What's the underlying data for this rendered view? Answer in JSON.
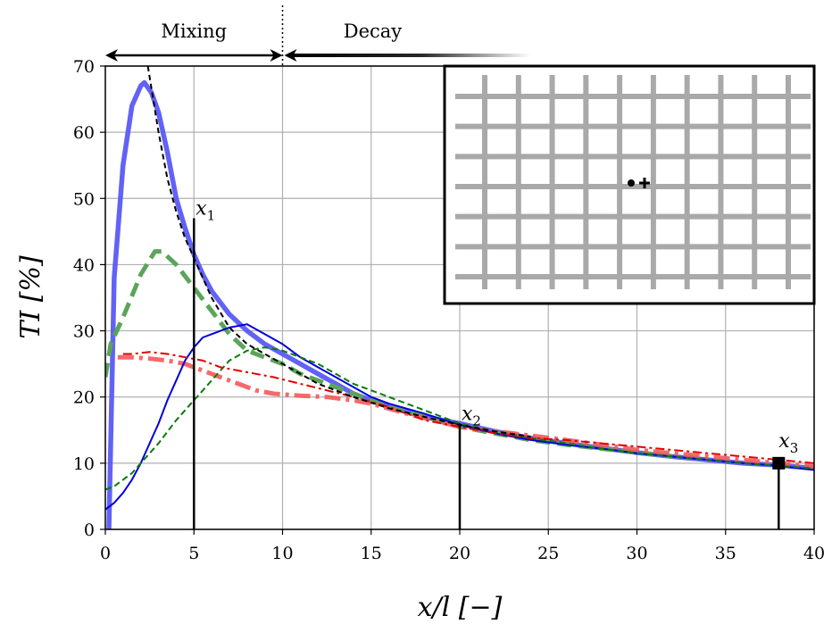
{
  "chart_data": {
    "type": "line",
    "xlabel": "x/l [−]",
    "ylabel": "TI [%]",
    "xlim": [
      0,
      40
    ],
    "ylim": [
      0,
      70
    ],
    "xticks": [
      0,
      5,
      10,
      15,
      20,
      25,
      30,
      35,
      40
    ],
    "yticks": [
      0,
      10,
      20,
      30,
      40,
      50,
      60,
      70
    ],
    "grid": true,
    "regions": [
      {
        "label": "Mixing",
        "x_from": 0,
        "x_to": 10
      },
      {
        "label": "Decay",
        "x_from": 10,
        "x_to": 24
      }
    ],
    "region_divider_x": 10,
    "series": [
      {
        "style": "thick-solid",
        "color": "#5a5af5",
        "x": [
          0.2,
          0.5,
          1.0,
          1.5,
          2.0,
          2.2,
          2.6,
          3.0,
          3.5,
          4.0,
          4.5,
          5.0,
          5.5,
          6.0,
          7.0,
          8.0,
          9.0,
          10.0,
          11.0,
          12.0,
          13.0,
          14.0,
          15.0,
          16.0,
          18.0,
          20.0,
          22.0,
          24.0,
          26.0,
          28.0,
          30.0,
          32.0,
          34.0,
          36.0,
          38.0,
          40.0
        ],
        "y": [
          0.0,
          38.0,
          55.0,
          64.0,
          67.0,
          67.5,
          66.0,
          63.0,
          57.0,
          50.0,
          45.5,
          41.5,
          38.5,
          36.0,
          32.5,
          30.0,
          28.0,
          26.5,
          25.0,
          23.5,
          22.0,
          20.5,
          19.5,
          18.5,
          17.0,
          16.0,
          14.8,
          13.8,
          13.0,
          12.3,
          11.6,
          11.0,
          10.5,
          10.0,
          9.7,
          9.2
        ]
      },
      {
        "style": "thick-dashed",
        "color": "#5aa55a",
        "x": [
          0.0,
          0.3,
          1.0,
          2.0,
          2.8,
          3.2,
          4.0,
          5.0,
          6.0,
          7.0,
          8.0,
          9.0,
          10.0,
          11.0,
          12.0,
          13.0,
          14.0,
          15.0,
          16.0,
          18.0,
          20.0,
          22.0,
          24.0,
          26.0,
          28.0,
          30.0,
          32.0
        ],
        "y": [
          23.0,
          28.0,
          32.0,
          38.5,
          42.0,
          42.0,
          40.0,
          36.5,
          33.0,
          29.5,
          27.0,
          26.0,
          25.0,
          23.5,
          22.5,
          21.5,
          20.5,
          19.5,
          18.5,
          17.0,
          15.5,
          14.5,
          13.5,
          12.8,
          12.2,
          11.6,
          11.0
        ]
      },
      {
        "style": "thick-dashdot",
        "color": "#f25a5a",
        "x": [
          0.7,
          1.5,
          2.5,
          3.5,
          4.5,
          5.5,
          6.5,
          7.5,
          8.5,
          9.5,
          11.0,
          12.5,
          14.0,
          15.0,
          17.0,
          20.0,
          23.0,
          26.0,
          28.0,
          30.0,
          32.0,
          34.0,
          36.0,
          38.0,
          40.0
        ],
        "y": [
          26.0,
          26.0,
          25.8,
          25.5,
          25.0,
          24.0,
          23.0,
          22.0,
          21.0,
          20.5,
          20.2,
          20.0,
          19.5,
          19.0,
          17.5,
          15.5,
          14.5,
          13.5,
          12.8,
          12.0,
          11.5,
          11.0,
          10.5,
          10.0,
          9.5
        ]
      },
      {
        "style": "thin-solid",
        "color": "#0000dd",
        "x": [
          0.0,
          0.5,
          1.0,
          1.5,
          2.0,
          2.5,
          3.0,
          3.5,
          4.0,
          4.5,
          5.0,
          5.5,
          6.0,
          7.0,
          8.0,
          9.0,
          10.0,
          11.0,
          12.0,
          13.0,
          14.0,
          15.0,
          16.0,
          18.0,
          20.0,
          22.0,
          24.0,
          26.0,
          28.0,
          30.0,
          32.0,
          34.0,
          36.0,
          38.0,
          40.0
        ],
        "y": [
          3.0,
          4.0,
          5.5,
          7.5,
          10.0,
          13.0,
          16.0,
          19.5,
          22.5,
          25.5,
          27.5,
          29.0,
          29.5,
          30.5,
          31.0,
          29.5,
          28.0,
          26.0,
          24.5,
          23.0,
          21.5,
          20.0,
          19.0,
          17.5,
          15.8,
          14.5,
          13.5,
          12.8,
          12.2,
          11.5,
          11.0,
          10.5,
          10.0,
          9.6,
          9.0
        ]
      },
      {
        "style": "thin-dashed",
        "color": "#0a7a0a",
        "x": [
          0.0,
          0.5,
          1.0,
          1.5,
          2.0,
          3.0,
          4.0,
          5.0,
          6.0,
          7.0,
          8.0,
          9.0,
          10.0,
          11.0,
          12.0,
          13.0,
          14.0,
          15.0,
          16.0,
          18.0,
          20.0,
          22.0,
          24.0,
          26.0,
          28.0,
          30.0,
          32.0,
          34.0,
          36.0,
          38.0,
          40.0
        ],
        "y": [
          6.0,
          6.5,
          7.5,
          8.5,
          10.0,
          13.0,
          16.5,
          19.5,
          22.5,
          25.5,
          27.0,
          27.5,
          27.0,
          26.0,
          25.0,
          23.5,
          22.0,
          21.0,
          20.0,
          18.0,
          16.0,
          14.8,
          13.8,
          13.0,
          12.2,
          11.5,
          11.0,
          10.5,
          10.0,
          9.6,
          9.2
        ]
      },
      {
        "style": "thin-dashdot",
        "color": "#e00000",
        "x": [
          1.0,
          1.5,
          2.5,
          3.5,
          4.5,
          5.5,
          6.5,
          7.5,
          8.5,
          9.5,
          11.0,
          12.5,
          14.0,
          16.0,
          18.0,
          20.0,
          22.0,
          24.0,
          26.0,
          28.0,
          30.0,
          32.0,
          34.0,
          36.0,
          38.0,
          40.0
        ],
        "y": [
          26.5,
          26.5,
          26.8,
          26.5,
          26.0,
          25.5,
          24.5,
          24.0,
          23.5,
          23.0,
          22.0,
          21.0,
          20.0,
          18.5,
          16.5,
          15.5,
          14.5,
          13.8,
          13.5,
          13.0,
          12.5,
          12.0,
          11.5,
          11.0,
          10.5,
          10.0
        ]
      },
      {
        "style": "fit-dashed",
        "color": "#000000",
        "x": [
          2.4,
          3.0,
          3.5,
          4.0,
          4.5,
          5.0,
          5.5,
          6.0,
          7.0,
          8.0,
          9.0,
          10.0,
          12.0,
          14.0,
          16.0,
          18.0,
          20.0,
          22.0,
          24.0
        ],
        "y": [
          70.0,
          60.0,
          53.0,
          48.0,
          44.0,
          41.0,
          38.0,
          35.0,
          30.5,
          28.0,
          26.5,
          25.0,
          22.0,
          20.0,
          18.3,
          17.0,
          15.8,
          14.8,
          14.0
        ]
      }
    ],
    "probes": [
      {
        "name": "x",
        "sub": "1",
        "x": 5,
        "y": 47,
        "marker": "none"
      },
      {
        "name": "x",
        "sub": "2",
        "x": 20,
        "y": 16,
        "marker": "none"
      },
      {
        "name": "x",
        "sub": "3",
        "x": 38,
        "y": 10,
        "marker": "square"
      }
    ],
    "inset": {
      "description_markers": [
        "dot",
        "plus"
      ],
      "grid_bars_vertical": 10,
      "grid_bars_horizontal": 7
    }
  }
}
